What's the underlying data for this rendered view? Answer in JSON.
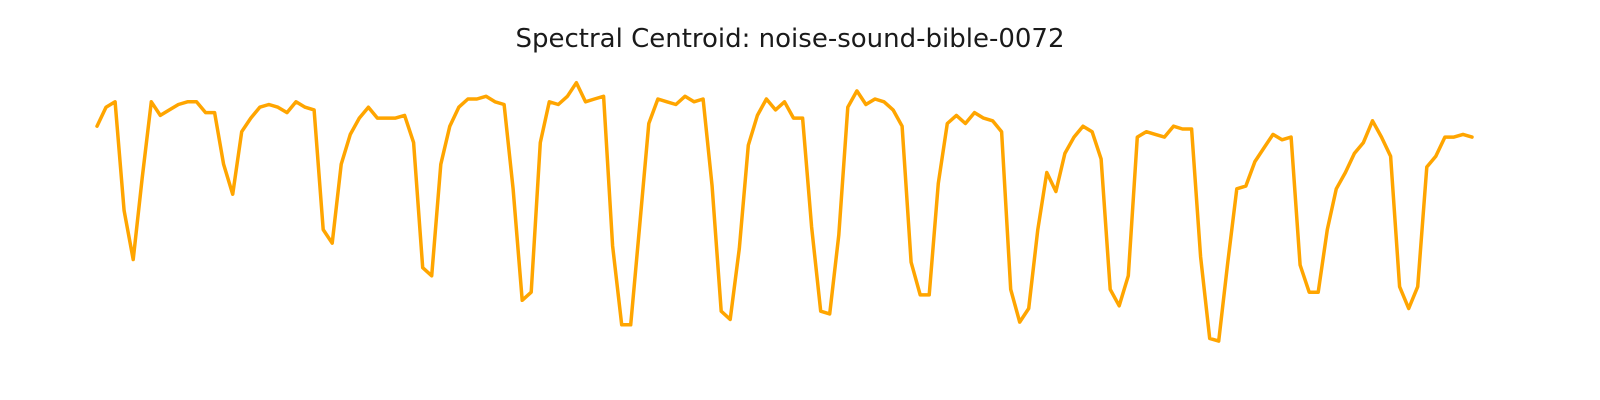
{
  "chart_data": {
    "type": "line",
    "title": "Spectral Centroid: noise-sound-bible-0072",
    "xlabel": "",
    "ylabel": "",
    "axes_visible": false,
    "grid": false,
    "line_color": "#FFA500",
    "ylim": [
      0,
      1
    ],
    "series": [
      {
        "values": [
          0.83,
          0.9,
          0.92,
          0.52,
          0.34,
          0.64,
          0.92,
          0.87,
          0.89,
          0.91,
          0.92,
          0.92,
          0.88,
          0.88,
          0.69,
          0.58,
          0.81,
          0.86,
          0.9,
          0.91,
          0.9,
          0.88,
          0.92,
          0.9,
          0.89,
          0.45,
          0.4,
          0.69,
          0.8,
          0.86,
          0.9,
          0.86,
          0.86,
          0.86,
          0.87,
          0.77,
          0.31,
          0.28,
          0.69,
          0.83,
          0.9,
          0.93,
          0.93,
          0.94,
          0.92,
          0.91,
          0.6,
          0.19,
          0.22,
          0.77,
          0.92,
          0.91,
          0.94,
          0.99,
          0.92,
          0.93,
          0.94,
          0.39,
          0.1,
          0.1,
          0.47,
          0.84,
          0.93,
          0.92,
          0.91,
          0.94,
          0.92,
          0.93,
          0.61,
          0.15,
          0.12,
          0.38,
          0.76,
          0.87,
          0.93,
          0.89,
          0.92,
          0.86,
          0.86,
          0.46,
          0.15,
          0.14,
          0.43,
          0.9,
          0.96,
          0.91,
          0.93,
          0.92,
          0.89,
          0.83,
          0.33,
          0.21,
          0.21,
          0.62,
          0.84,
          0.87,
          0.84,
          0.88,
          0.86,
          0.85,
          0.81,
          0.23,
          0.11,
          0.16,
          0.45,
          0.66,
          0.59,
          0.73,
          0.79,
          0.83,
          0.81,
          0.71,
          0.23,
          0.17,
          0.28,
          0.79,
          0.81,
          0.8,
          0.79,
          0.83,
          0.82,
          0.82,
          0.35,
          0.05,
          0.04,
          0.33,
          0.6,
          0.61,
          0.7,
          0.75,
          0.8,
          0.78,
          0.79,
          0.32,
          0.22,
          0.22,
          0.45,
          0.6,
          0.66,
          0.73,
          0.77,
          0.85,
          0.79,
          0.72,
          0.24,
          0.16,
          0.24,
          0.68,
          0.72,
          0.79,
          0.79,
          0.8,
          0.79
        ]
      }
    ]
  }
}
